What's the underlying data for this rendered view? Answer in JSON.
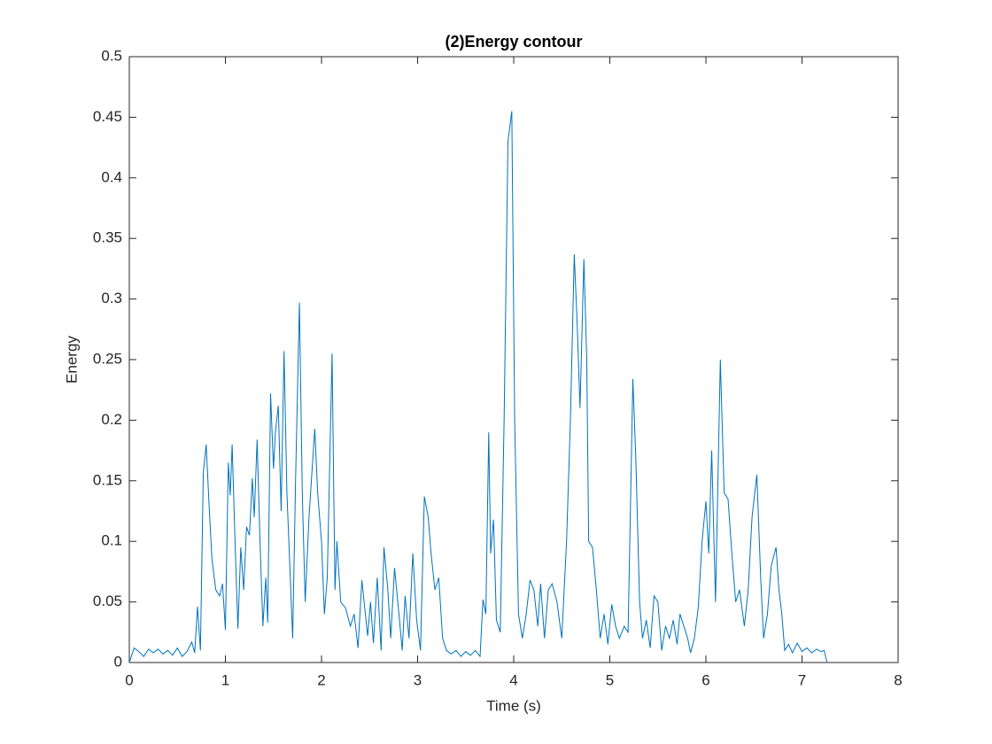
{
  "chart_data": {
    "type": "line",
    "title": "(2)Energy contour",
    "x_label": "Time (s)",
    "y_label": "Energy",
    "x": [
      0,
      0.05,
      0.1,
      0.15,
      0.2,
      0.25,
      0.3,
      0.35,
      0.4,
      0.45,
      0.5,
      0.55,
      0.6,
      0.65,
      0.68,
      0.71,
      0.74,
      0.77,
      0.8,
      0.83,
      0.86,
      0.9,
      0.94,
      0.97,
      1.0,
      1.03,
      1.05,
      1.07,
      1.1,
      1.13,
      1.16,
      1.19,
      1.22,
      1.25,
      1.28,
      1.3,
      1.33,
      1.36,
      1.39,
      1.42,
      1.44,
      1.47,
      1.5,
      1.52,
      1.55,
      1.58,
      1.61,
      1.64,
      1.67,
      1.7,
      1.73,
      1.77,
      1.8,
      1.83,
      1.87,
      1.93,
      1.96,
      2.0,
      2.03,
      2.06,
      2.11,
      2.14,
      2.16,
      2.2,
      2.25,
      2.3,
      2.34,
      2.38,
      2.42,
      2.45,
      2.48,
      2.51,
      2.54,
      2.58,
      2.62,
      2.65,
      2.69,
      2.72,
      2.76,
      2.8,
      2.84,
      2.87,
      2.91,
      2.95,
      2.99,
      3.03,
      3.07,
      3.11,
      3.14,
      3.18,
      3.22,
      3.26,
      3.3,
      3.35,
      3.4,
      3.45,
      3.5,
      3.55,
      3.6,
      3.65,
      3.68,
      3.71,
      3.74,
      3.76,
      3.79,
      3.82,
      3.86,
      3.9,
      3.94,
      3.98,
      4.01,
      4.05,
      4.09,
      4.13,
      4.17,
      4.21,
      4.25,
      4.28,
      4.32,
      4.36,
      4.4,
      4.45,
      4.5,
      4.55,
      4.59,
      4.63,
      4.66,
      4.69,
      4.73,
      4.76,
      4.78,
      4.82,
      4.86,
      4.9,
      4.94,
      4.98,
      5.02,
      5.06,
      5.1,
      5.15,
      5.19,
      5.24,
      5.27,
      5.31,
      5.34,
      5.38,
      5.42,
      5.46,
      5.5,
      5.54,
      5.58,
      5.62,
      5.66,
      5.7,
      5.73,
      5.77,
      5.81,
      5.84,
      5.88,
      5.92,
      5.96,
      6.0,
      6.03,
      6.06,
      6.1,
      6.15,
      6.19,
      6.23,
      6.27,
      6.31,
      6.35,
      6.4,
      6.44,
      6.48,
      6.53,
      6.57,
      6.6,
      6.64,
      6.68,
      6.73,
      6.76,
      6.79,
      6.82,
      6.86,
      6.9,
      6.95,
      7.0,
      7.05,
      7.1,
      7.15,
      7.2,
      7.23,
      7.26
    ],
    "series": [
      {
        "color": "#0072bd",
        "values": [
          0,
          0.012,
          0.009,
          0.005,
          0.011,
          0.008,
          0.011,
          0.007,
          0.01,
          0.006,
          0.012,
          0.005,
          0.009,
          0.017,
          0.008,
          0.046,
          0.01,
          0.157,
          0.18,
          0.13,
          0.085,
          0.06,
          0.055,
          0.065,
          0.027,
          0.165,
          0.138,
          0.18,
          0.1,
          0.028,
          0.095,
          0.06,
          0.112,
          0.105,
          0.152,
          0.12,
          0.184,
          0.1,
          0.03,
          0.07,
          0.033,
          0.222,
          0.16,
          0.19,
          0.212,
          0.125,
          0.257,
          0.14,
          0.08,
          0.02,
          0.15,
          0.297,
          0.14,
          0.05,
          0.12,
          0.193,
          0.14,
          0.1,
          0.04,
          0.07,
          0.255,
          0.06,
          0.1,
          0.05,
          0.045,
          0.03,
          0.04,
          0.012,
          0.068,
          0.045,
          0.022,
          0.05,
          0.016,
          0.07,
          0.01,
          0.095,
          0.06,
          0.02,
          0.078,
          0.045,
          0.01,
          0.055,
          0.02,
          0.09,
          0.035,
          0.01,
          0.137,
          0.12,
          0.09,
          0.06,
          0.07,
          0.02,
          0.01,
          0.007,
          0.01,
          0.005,
          0.009,
          0.006,
          0.01,
          0.005,
          0.052,
          0.04,
          0.19,
          0.09,
          0.118,
          0.035,
          0.025,
          0.2,
          0.43,
          0.455,
          0.2,
          0.04,
          0.02,
          0.04,
          0.068,
          0.06,
          0.03,
          0.065,
          0.02,
          0.06,
          0.065,
          0.05,
          0.02,
          0.1,
          0.2,
          0.337,
          0.28,
          0.21,
          0.333,
          0.25,
          0.1,
          0.095,
          0.06,
          0.02,
          0.04,
          0.015,
          0.048,
          0.03,
          0.02,
          0.03,
          0.025,
          0.234,
          0.17,
          0.05,
          0.02,
          0.035,
          0.012,
          0.055,
          0.05,
          0.01,
          0.03,
          0.02,
          0.035,
          0.015,
          0.04,
          0.03,
          0.02,
          0.008,
          0.02,
          0.045,
          0.1,
          0.133,
          0.09,
          0.175,
          0.05,
          0.25,
          0.14,
          0.135,
          0.09,
          0.05,
          0.06,
          0.03,
          0.06,
          0.12,
          0.155,
          0.07,
          0.02,
          0.04,
          0.08,
          0.095,
          0.06,
          0.04,
          0.01,
          0.015,
          0.008,
          0.016,
          0.009,
          0.012,
          0.008,
          0.011,
          0.009,
          0.01,
          0
        ]
      }
    ],
    "xlim": [
      0,
      8
    ],
    "xticks": [
      0,
      1,
      2,
      3,
      4,
      5,
      6,
      7,
      8
    ],
    "ylim": [
      0,
      0.5
    ],
    "yticks": [
      0,
      0.05,
      0.1,
      0.15,
      0.2,
      0.25,
      0.3,
      0.35,
      0.4,
      0.45,
      0.5
    ]
  }
}
